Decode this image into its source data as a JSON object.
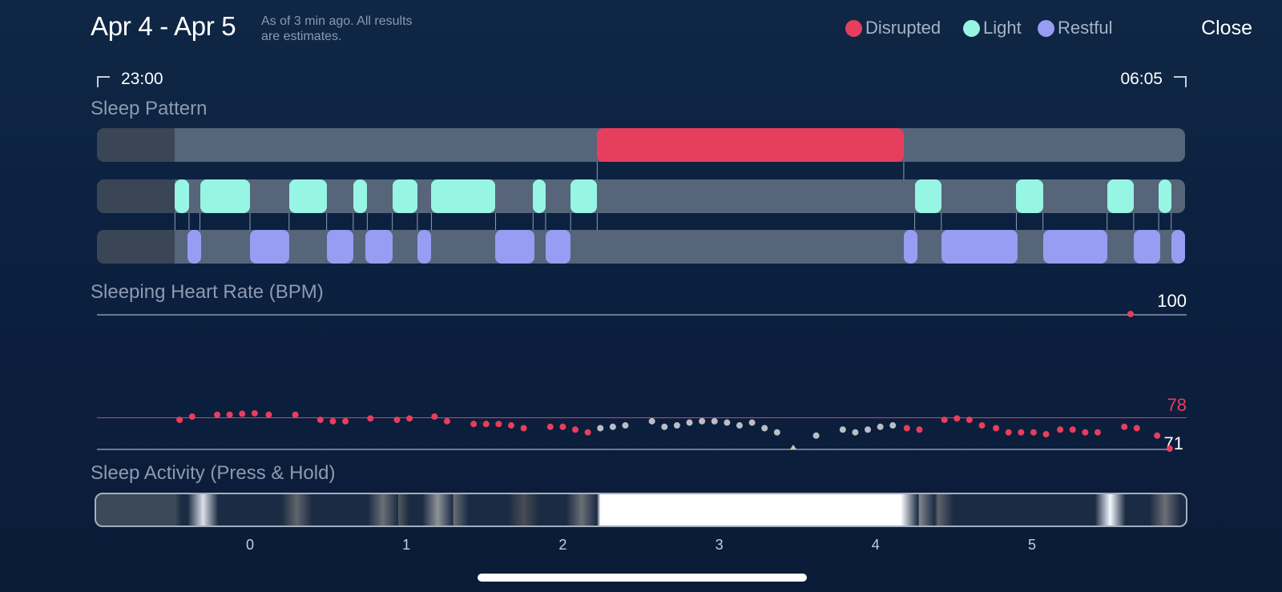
{
  "header": {
    "date_range": "Apr 4 - Apr 5",
    "subtitle_line1": "As of 3 min ago. All results",
    "subtitle_line2": "are estimates.",
    "close_label": "Close"
  },
  "legend": [
    {
      "label": "Disrupted",
      "color": "#e83e5e"
    },
    {
      "label": "Light",
      "color": "#96f5e3"
    },
    {
      "label": "Restful",
      "color": "#979df2"
    }
  ],
  "time_range": {
    "start": "23:00",
    "end": "06:05"
  },
  "sleep_pattern": {
    "label": "Sleep Pattern",
    "disrupted": [
      [
        2.22,
        4.18
      ]
    ],
    "light": [
      [
        -0.48,
        -0.39
      ],
      [
        -0.32,
        0.0
      ],
      [
        0.25,
        0.49
      ],
      [
        0.66,
        0.75
      ],
      [
        0.91,
        1.07
      ],
      [
        1.16,
        1.57
      ],
      [
        1.81,
        1.89
      ],
      [
        2.05,
        2.22
      ],
      [
        4.25,
        4.42
      ],
      [
        4.9,
        5.07
      ],
      [
        5.48,
        5.65
      ],
      [
        5.81,
        5.89
      ]
    ],
    "restful": [
      [
        -0.4,
        -0.31
      ],
      [
        0.0,
        0.25
      ],
      [
        0.49,
        0.66
      ],
      [
        0.74,
        0.91
      ],
      [
        1.07,
        1.16
      ],
      [
        1.57,
        1.82
      ],
      [
        1.89,
        2.05
      ],
      [
        4.18,
        4.27
      ],
      [
        4.42,
        4.91
      ],
      [
        5.07,
        5.48
      ],
      [
        5.65,
        5.82
      ],
      [
        5.89,
        5.98
      ]
    ]
  },
  "heart_rate": {
    "label": "Sleeping Heart Rate (BPM)",
    "max_label": "100",
    "avg_label": "78",
    "min_label": "71",
    "red_points": [
      [
        -0.45,
        77.2
      ],
      [
        -0.37,
        77.9
      ],
      [
        -0.21,
        78.3
      ],
      [
        -0.13,
        78.3
      ],
      [
        -0.05,
        78.5
      ],
      [
        0.03,
        78.6
      ],
      [
        0.12,
        78.3
      ],
      [
        0.29,
        78.3
      ],
      [
        0.45,
        77.2
      ],
      [
        0.53,
        76.9
      ],
      [
        0.61,
        76.9
      ],
      [
        0.77,
        77.5
      ],
      [
        0.94,
        77.2
      ],
      [
        1.02,
        77.5
      ],
      [
        1.18,
        77.9
      ],
      [
        1.26,
        76.9
      ],
      [
        1.43,
        76.3
      ],
      [
        1.51,
        76.3
      ],
      [
        1.59,
        76.3
      ],
      [
        1.67,
        76.0
      ],
      [
        1.75,
        75.4
      ],
      [
        1.92,
        75.7
      ],
      [
        2.0,
        75.7
      ],
      [
        2.08,
        75.1
      ],
      [
        2.16,
        74.5
      ],
      [
        4.2,
        75.4
      ],
      [
        4.28,
        75.1
      ],
      [
        4.44,
        77.2
      ],
      [
        4.52,
        77.5
      ],
      [
        4.6,
        77.2
      ],
      [
        4.68,
        76.0
      ],
      [
        4.77,
        75.4
      ],
      [
        4.85,
        74.5
      ],
      [
        4.93,
        74.5
      ],
      [
        5.01,
        74.5
      ],
      [
        5.09,
        74.1
      ],
      [
        5.18,
        75.1
      ],
      [
        5.26,
        75.1
      ],
      [
        5.34,
        74.5
      ],
      [
        5.42,
        74.5
      ],
      [
        5.59,
        75.7
      ],
      [
        5.67,
        75.4
      ],
      [
        5.8,
        73.8
      ],
      [
        5.88,
        71.0
      ],
      [
        5.63,
        100.0
      ]
    ],
    "grey_points": [
      [
        2.24,
        75.4
      ],
      [
        2.32,
        75.7
      ],
      [
        2.4,
        76.0
      ],
      [
        2.57,
        76.9
      ],
      [
        2.65,
        75.7
      ],
      [
        2.73,
        76.0
      ],
      [
        2.81,
        76.6
      ],
      [
        2.89,
        76.9
      ],
      [
        2.97,
        76.9
      ],
      [
        3.05,
        76.6
      ],
      [
        3.13,
        76.0
      ],
      [
        3.21,
        76.6
      ],
      [
        3.29,
        75.4
      ],
      [
        3.37,
        74.5
      ],
      [
        3.62,
        73.8
      ],
      [
        3.79,
        75.1
      ],
      [
        3.87,
        74.5
      ],
      [
        3.95,
        75.1
      ],
      [
        4.03,
        75.7
      ],
      [
        4.11,
        76.0
      ]
    ]
  },
  "sleep_activity": {
    "label": "Sleep Activity (Press & Hold)",
    "bright_spans": [
      [
        2.24,
        4.16
      ]
    ],
    "flares": [
      [
        -0.3,
        0.85
      ],
      [
        0.3,
        0.3
      ],
      [
        0.85,
        0.35
      ],
      [
        0.92,
        0.25
      ],
      [
        1.2,
        0.5
      ],
      [
        1.3,
        0.35
      ],
      [
        1.75,
        0.2
      ],
      [
        2.12,
        0.35
      ],
      [
        4.28,
        0.45
      ],
      [
        4.4,
        0.3
      ],
      [
        5.5,
        0.95
      ],
      [
        5.85,
        0.35
      ]
    ]
  },
  "x_axis": {
    "ticks": [
      "0",
      "1",
      "2",
      "3",
      "4",
      "5"
    ]
  },
  "colors": {
    "accent_red": "#e83e5e",
    "light": "#96f5e3",
    "restful": "#979df2",
    "track": "#56657a",
    "background": "#0d213f"
  }
}
